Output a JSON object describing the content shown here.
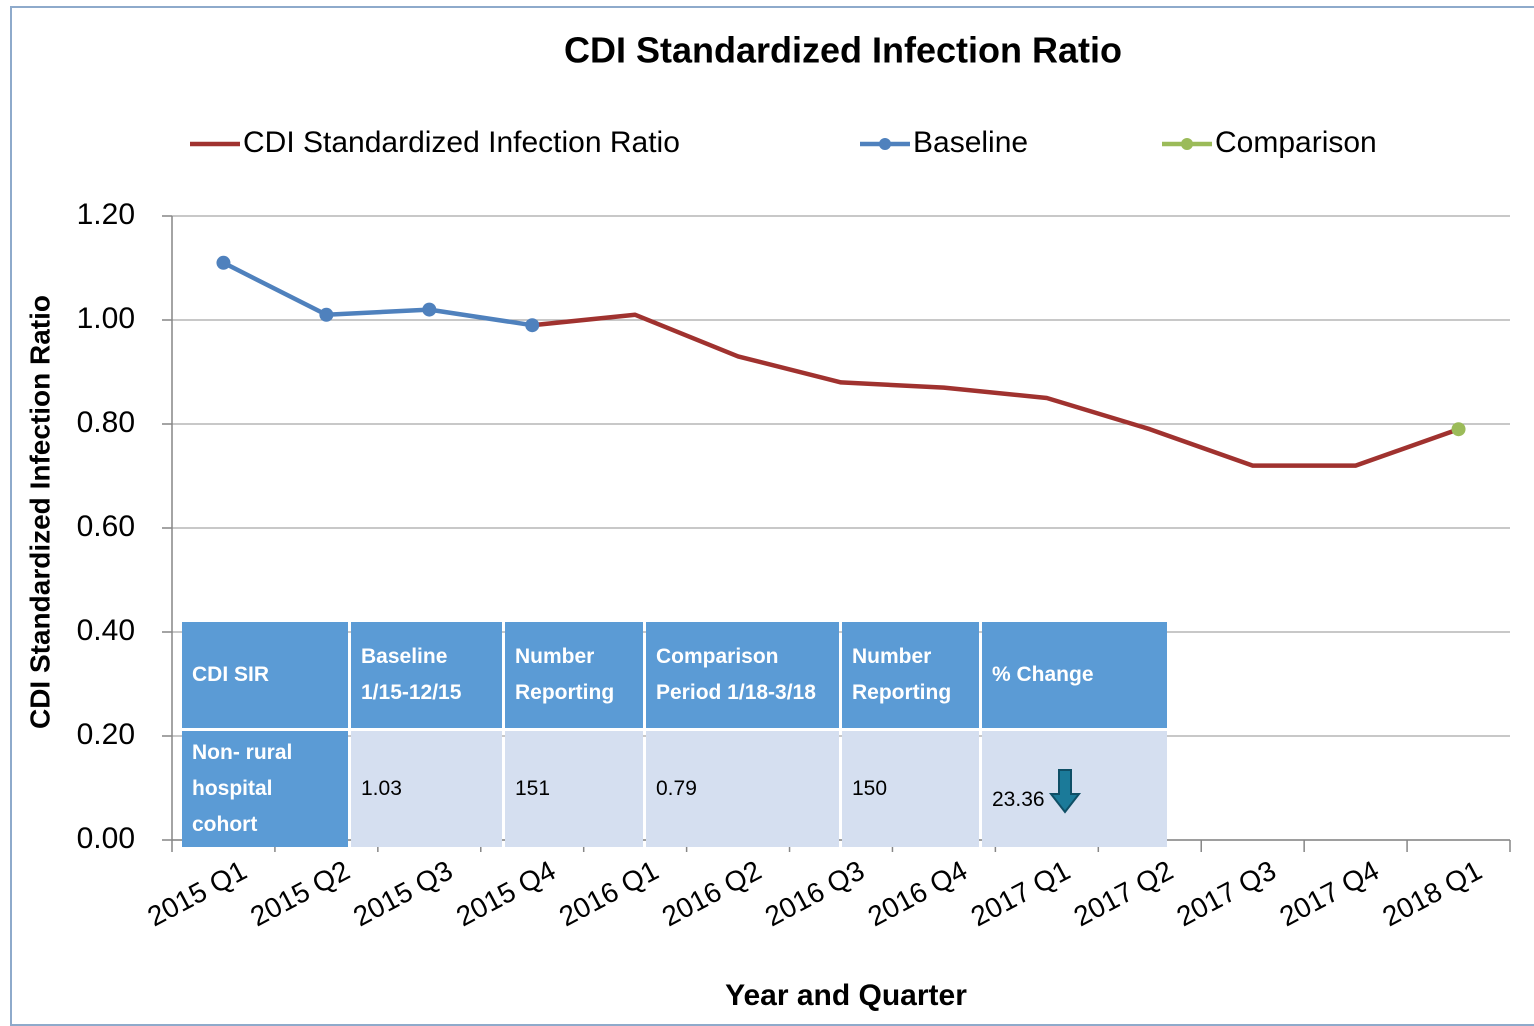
{
  "chart_data": {
    "type": "line",
    "title": "CDI Standardized Infection Ratio",
    "x_label": "Year and Quarter",
    "y_label": "CDI Standardized Infection Ratio",
    "categories": [
      "2015 Q1",
      "2015 Q2",
      "2015 Q3",
      "2015 Q4",
      "2016 Q1",
      "2016 Q2",
      "2016 Q3",
      "2016 Q4",
      "2017 Q1",
      "2017 Q2",
      "2017 Q3",
      "2017 Q4",
      "2018 Q1"
    ],
    "series": [
      {
        "name": "CDI Standardized Infection Ratio",
        "color": "#a0322f",
        "marker": false,
        "values": [
          null,
          null,
          null,
          0.99,
          1.01,
          0.93,
          0.88,
          0.87,
          0.85,
          0.79,
          0.72,
          0.72,
          0.79
        ]
      },
      {
        "name": "Baseline",
        "color": "#4f81bd",
        "marker": true,
        "values": [
          1.11,
          1.01,
          1.02,
          0.99,
          null,
          null,
          null,
          null,
          null,
          null,
          null,
          null,
          null
        ]
      },
      {
        "name": "Comparison",
        "color": "#9bbb59",
        "marker": true,
        "values": [
          null,
          null,
          null,
          null,
          null,
          null,
          null,
          null,
          null,
          null,
          null,
          null,
          0.79
        ]
      }
    ],
    "ylim": [
      0,
      1.2
    ],
    "yticks": [
      {
        "value": 0,
        "label": "0.00"
      },
      {
        "value": 0.2,
        "label": "0.20"
      },
      {
        "value": 0.4,
        "label": "0.40"
      },
      {
        "value": 0.6,
        "label": "0.60"
      },
      {
        "value": 0.8,
        "label": "0.80"
      },
      {
        "value": 1.0,
        "label": "1.00"
      },
      {
        "value": 1.2,
        "label": "1.20"
      }
    ],
    "grid": true,
    "legend": "top"
  },
  "table": {
    "header": [
      "CDI SIR",
      "Baseline 1/15-12/15",
      "Number Reporting",
      "Comparison Period 1/18-3/18",
      "Number Reporting",
      "% Change"
    ],
    "rows": [
      [
        "Non- rural hospital cohort",
        "1.03",
        "151",
        "0.79",
        "150",
        "23.36"
      ]
    ]
  }
}
